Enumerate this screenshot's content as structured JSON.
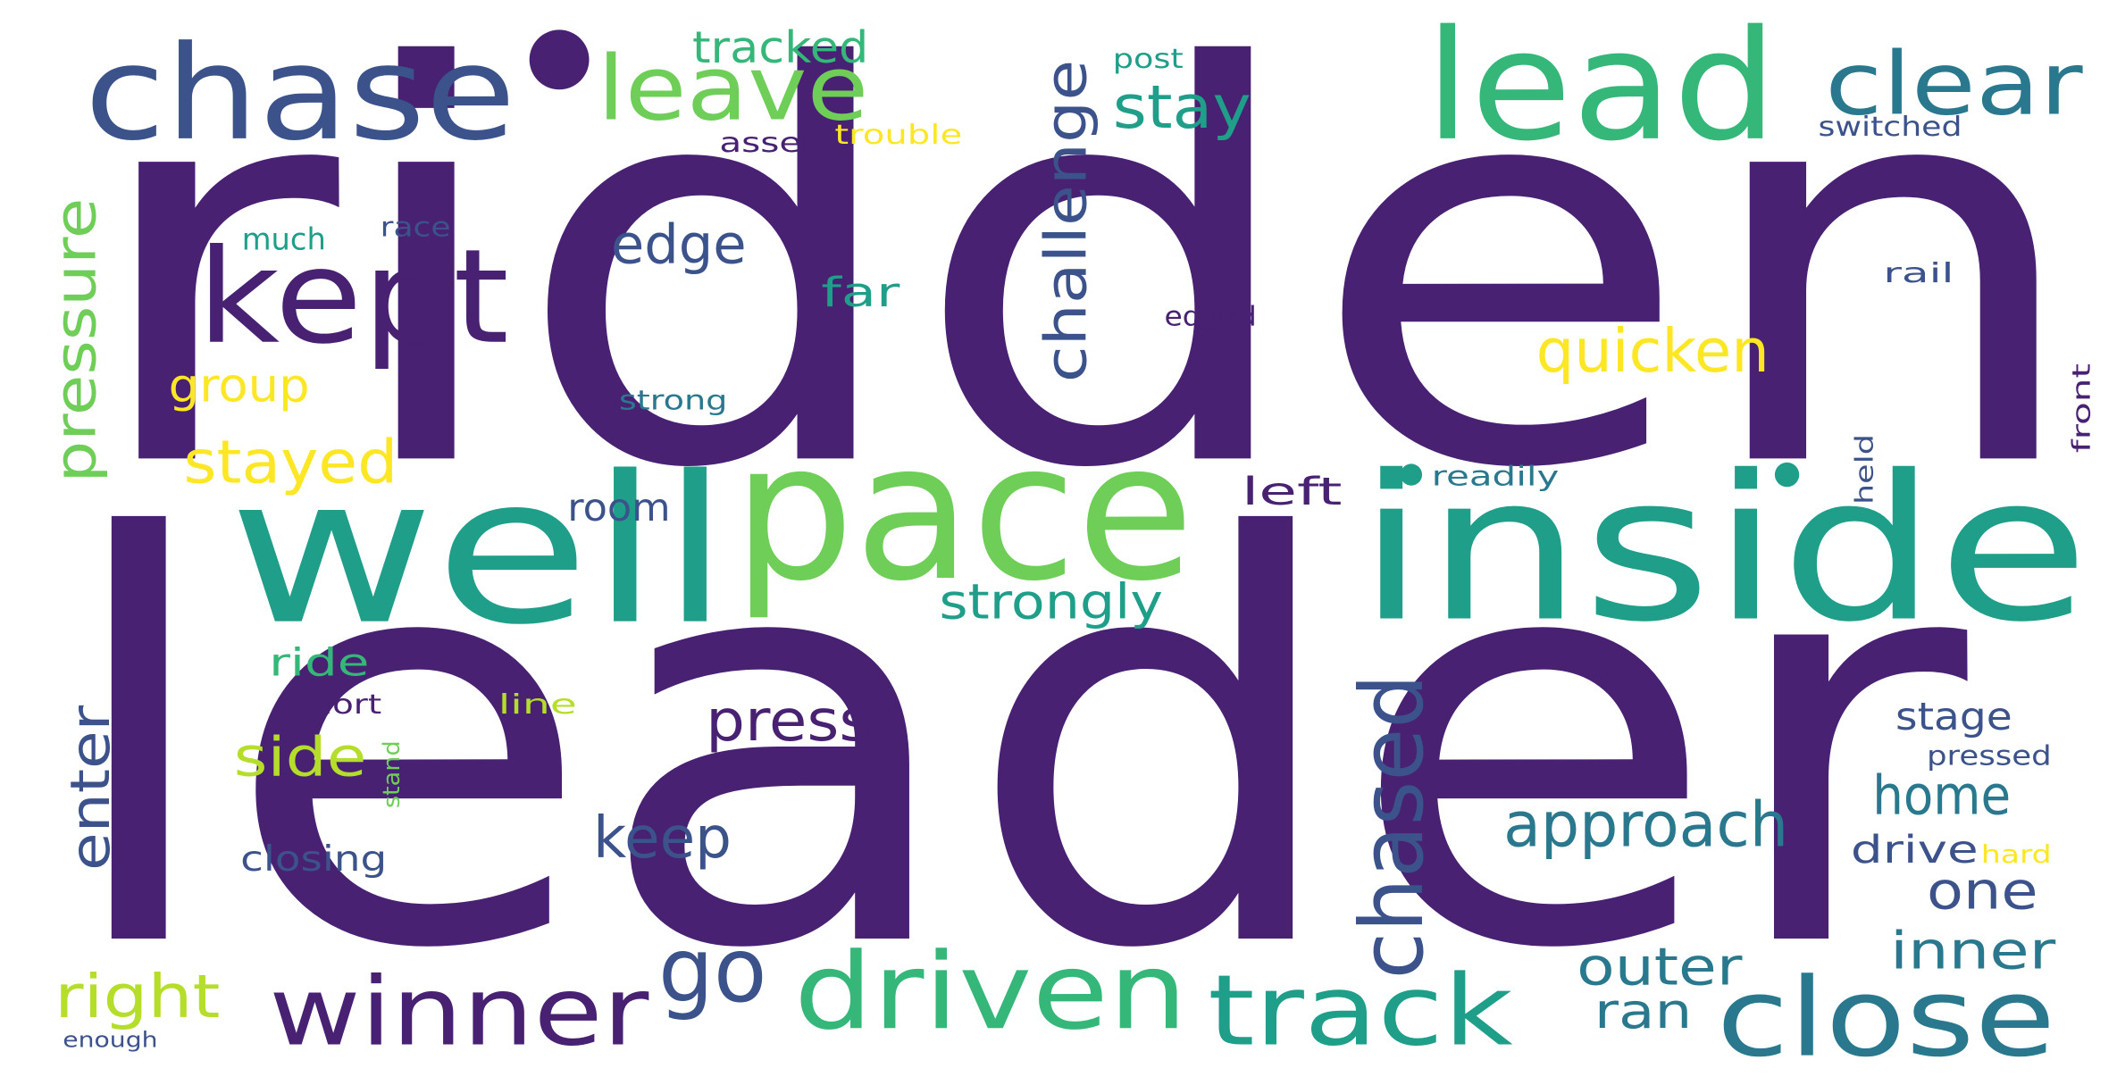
{
  "words": [
    {
      "text": "ridden",
      "color": "#482173"
    },
    {
      "text": "leader",
      "color": "#482173"
    },
    {
      "text": "well",
      "color": "#1f9e89"
    },
    {
      "text": "pace",
      "color": "#6ece58"
    },
    {
      "text": "inside",
      "color": "#1f9e89"
    },
    {
      "text": "chase",
      "color": "#3b528b"
    },
    {
      "text": "lead",
      "color": "#35b779"
    },
    {
      "text": "leave",
      "color": "#6ece58"
    },
    {
      "text": "clear",
      "color": "#2a788e"
    },
    {
      "text": "kept",
      "color": "#482173"
    },
    {
      "text": "winner",
      "color": "#482173"
    },
    {
      "text": "driven",
      "color": "#35b779"
    },
    {
      "text": "track",
      "color": "#1f9e89"
    },
    {
      "text": "close",
      "color": "#2a788e"
    },
    {
      "text": "chased",
      "color": "#3b528b"
    },
    {
      "text": "go",
      "color": "#3b528b"
    },
    {
      "text": "challenge",
      "color": "#3b528b"
    },
    {
      "text": "pressure",
      "color": "#6ece58"
    },
    {
      "text": "approach",
      "color": "#2a788e"
    },
    {
      "text": "stay",
      "color": "#1f9e89"
    },
    {
      "text": "tracked",
      "color": "#35b779"
    },
    {
      "text": "quicken",
      "color": "#fde725"
    },
    {
      "text": "stayed",
      "color": "#fde725"
    },
    {
      "text": "strongly",
      "color": "#1f9e89"
    },
    {
      "text": "edge",
      "color": "#3b528b"
    },
    {
      "text": "home",
      "color": "#2a788e"
    },
    {
      "text": "press",
      "color": "#482173"
    },
    {
      "text": "keep",
      "color": "#3b528b"
    },
    {
      "text": "enter",
      "color": "#3b528b"
    },
    {
      "text": "right",
      "color": "#b5de2b"
    },
    {
      "text": "outer",
      "color": "#2a788e"
    },
    {
      "text": "inner",
      "color": "#2a788e"
    },
    {
      "text": "one",
      "color": "#3b528b"
    },
    {
      "text": "ran",
      "color": "#2a788e"
    },
    {
      "text": "side",
      "color": "#b5de2b"
    },
    {
      "text": "group",
      "color": "#fde725"
    },
    {
      "text": "far",
      "color": "#1f9e89"
    },
    {
      "text": "room",
      "color": "#3b528b"
    },
    {
      "text": "left",
      "color": "#482173"
    },
    {
      "text": "ride",
      "color": "#35b779"
    },
    {
      "text": "drive",
      "color": "#3b528b"
    },
    {
      "text": "stage",
      "color": "#3b528b"
    },
    {
      "text": "closing",
      "color": "#3b528b"
    },
    {
      "text": "much",
      "color": "#1f9e89"
    },
    {
      "text": "race",
      "color": "#3b528b"
    },
    {
      "text": "strong",
      "color": "#2a788e"
    },
    {
      "text": "readily",
      "color": "#2a788e"
    },
    {
      "text": "held",
      "color": "#3b528b"
    },
    {
      "text": "front",
      "color": "#482173"
    },
    {
      "text": "rail",
      "color": "#3b528b"
    },
    {
      "text": "edged",
      "color": "#482173"
    },
    {
      "text": "post",
      "color": "#1f9e89"
    },
    {
      "text": "trouble",
      "color": "#fde725"
    },
    {
      "text": "assert",
      "color": "#482173"
    },
    {
      "text": "switched",
      "color": "#3b528b"
    },
    {
      "text": "short",
      "color": "#482173"
    },
    {
      "text": "line",
      "color": "#b5de2b"
    },
    {
      "text": "stand",
      "color": "#6ece58"
    },
    {
      "text": "pressed",
      "color": "#3b528b"
    },
    {
      "text": "hard",
      "color": "#fde725"
    },
    {
      "text": "enough",
      "color": "#3b528b"
    }
  ],
  "dots": [
    {
      "color": "#482173"
    },
    {
      "color": "#1f9e89"
    },
    {
      "color": "#1f9e89"
    }
  ]
}
